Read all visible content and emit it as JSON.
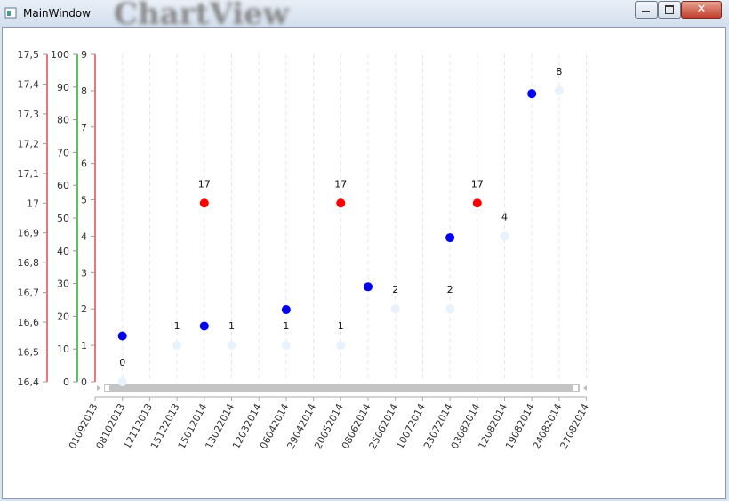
{
  "window": {
    "title": "MainWindow",
    "heading": "ChartView"
  },
  "chart_data": {
    "type": "scatter",
    "categories": [
      "01092013",
      "08102013",
      "12112013",
      "15122013",
      "15012014",
      "13022014",
      "12032014",
      "06042014",
      "29042014",
      "20052014",
      "08062014",
      "25062014",
      "10072014",
      "23072014",
      "03082014",
      "12082014",
      "19082014",
      "24082014",
      "27082014"
    ],
    "ylim": [
      16.4,
      17.5
    ],
    "yticks": [
      {
        "value": 16.4,
        "label": "16,4"
      },
      {
        "value": 16.5,
        "label": "16,5"
      },
      {
        "value": 16.6,
        "label": "16,6"
      },
      {
        "value": 16.7,
        "label": "16,7"
      },
      {
        "value": 16.8,
        "label": "16,8"
      },
      {
        "value": 16.9,
        "label": "16,9"
      },
      17,
      {
        "value": 17.1,
        "label": "17,1"
      },
      {
        "value": 17.2,
        "label": "17,2"
      },
      {
        "value": 17.3,
        "label": "17,3"
      },
      {
        "value": 17.4,
        "label": "17,4"
      },
      {
        "value": 17.5,
        "label": "17,5"
      }
    ],
    "y_axis_color": "#e87878",
    "y2lim": [
      0,
      100
    ],
    "y2ticks": [
      0,
      10,
      20,
      30,
      40,
      50,
      60,
      70,
      80,
      90,
      100
    ],
    "y2_axis_color": "#5cc05c",
    "y3lim": [
      0,
      9
    ],
    "y3ticks": [
      0,
      1,
      2,
      3,
      4,
      5,
      6,
      7,
      8,
      9
    ],
    "y3_axis_color": "#e87878",
    "series": [
      {
        "color": "#ff0000",
        "axis": "y",
        "labels": true,
        "values": [
          null,
          null,
          null,
          null,
          17,
          null,
          null,
          null,
          null,
          17,
          null,
          null,
          null,
          null,
          17,
          null,
          null,
          null,
          null
        ]
      },
      {
        "color": "#0000ee",
        "axis": "y2",
        "labels": false,
        "values": [
          null,
          14,
          null,
          null,
          17,
          null,
          null,
          22,
          null,
          null,
          29,
          null,
          null,
          44,
          null,
          null,
          88,
          null,
          null
        ]
      },
      {
        "color": "#e8f2fc",
        "axis": "y3",
        "labels": true,
        "values": [
          null,
          0,
          null,
          1,
          null,
          1,
          null,
          1,
          null,
          1,
          null,
          2,
          null,
          2,
          null,
          4,
          null,
          8,
          null
        ]
      }
    ]
  }
}
